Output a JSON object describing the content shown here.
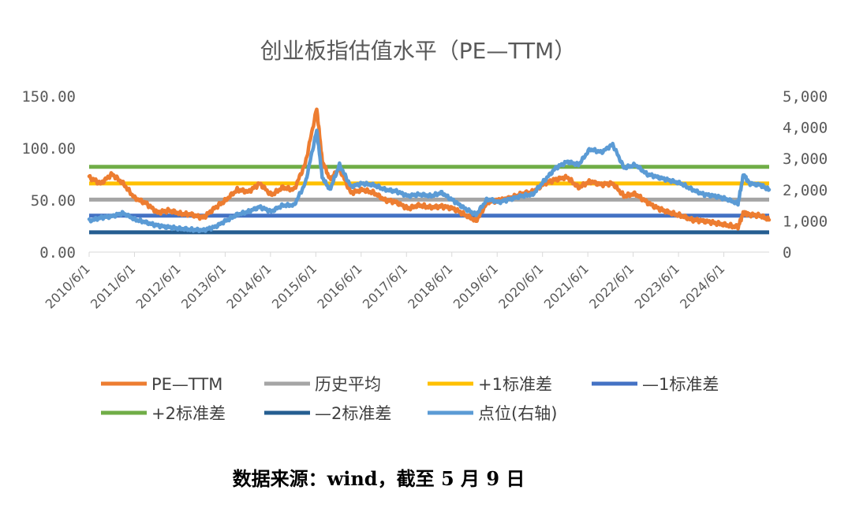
{
  "chart_data": {
    "type": "line",
    "title": "创业板指估值水平（PE—TTM）",
    "x_ticks": [
      "2010/6/1",
      "2011/6/1",
      "2012/6/1",
      "2013/6/1",
      "2014/6/1",
      "2015/6/1",
      "2016/6/1",
      "2017/6/1",
      "2018/6/1",
      "2019/6/1",
      "2020/6/1",
      "2021/6/1",
      "2022/6/1",
      "2023/6/1",
      "2024/6/1"
    ],
    "x_range": [
      "2010/6/1",
      "2025/5/9"
    ],
    "y_left": {
      "ticks": [
        "0.00",
        "50.00",
        "100.00",
        "150.00"
      ],
      "ylim": [
        0,
        150
      ]
    },
    "y_right": {
      "ticks": [
        "0",
        "1,000",
        "2,000",
        "3,000",
        "4,000",
        "5,000"
      ],
      "ylim": [
        0,
        5000
      ]
    },
    "grid": false,
    "legend_position": "bottom",
    "series": [
      {
        "name": "PE—TTM",
        "axis": "left",
        "color": "#ED7D31",
        "points": [
          [
            "2010/6/1",
            72
          ],
          [
            "2010/9/1",
            66
          ],
          [
            "2010/12/1",
            75
          ],
          [
            "2011/3/1",
            66
          ],
          [
            "2011/6/1",
            52
          ],
          [
            "2011/9/1",
            47
          ],
          [
            "2011/12/1",
            38
          ],
          [
            "2012/3/1",
            40
          ],
          [
            "2012/6/1",
            37
          ],
          [
            "2012/9/1",
            36
          ],
          [
            "2012/12/1",
            33
          ],
          [
            "2013/3/1",
            42
          ],
          [
            "2013/6/1",
            50
          ],
          [
            "2013/9/1",
            60
          ],
          [
            "2013/12/1",
            58
          ],
          [
            "2014/3/1",
            66
          ],
          [
            "2014/6/1",
            55
          ],
          [
            "2014/9/1",
            62
          ],
          [
            "2014/12/1",
            60
          ],
          [
            "2015/3/1",
            85
          ],
          [
            "2015/6/1",
            138
          ],
          [
            "2015/7/15",
            88
          ],
          [
            "2015/9/15",
            70
          ],
          [
            "2015/12/1",
            80
          ],
          [
            "2016/3/1",
            57
          ],
          [
            "2016/6/1",
            60
          ],
          [
            "2016/9/1",
            57
          ],
          [
            "2016/12/1",
            50
          ],
          [
            "2017/3/1",
            48
          ],
          [
            "2017/6/1",
            42
          ],
          [
            "2017/9/1",
            45
          ],
          [
            "2017/12/1",
            43
          ],
          [
            "2018/3/1",
            44
          ],
          [
            "2018/6/1",
            42
          ],
          [
            "2018/9/1",
            36
          ],
          [
            "2018/12/1",
            30
          ],
          [
            "2019/3/1",
            48
          ],
          [
            "2019/6/1",
            50
          ],
          [
            "2019/9/1",
            52
          ],
          [
            "2019/12/1",
            56
          ],
          [
            "2020/3/1",
            58
          ],
          [
            "2020/6/1",
            66
          ],
          [
            "2020/9/1",
            70
          ],
          [
            "2020/12/1",
            72
          ],
          [
            "2021/3/1",
            62
          ],
          [
            "2021/6/1",
            68
          ],
          [
            "2021/9/1",
            65
          ],
          [
            "2021/12/1",
            66
          ],
          [
            "2022/3/1",
            54
          ],
          [
            "2022/6/1",
            56
          ],
          [
            "2022/9/1",
            48
          ],
          [
            "2022/12/1",
            42
          ],
          [
            "2023/3/1",
            38
          ],
          [
            "2023/6/1",
            35
          ],
          [
            "2023/9/1",
            31
          ],
          [
            "2023/12/1",
            30
          ],
          [
            "2024/3/1",
            28
          ],
          [
            "2024/6/1",
            26
          ],
          [
            "2024/9/1",
            24
          ],
          [
            "2024/10/15",
            38
          ],
          [
            "2024/12/1",
            36
          ],
          [
            "2025/3/1",
            35
          ],
          [
            "2025/5/9",
            31
          ]
        ]
      },
      {
        "name": "历史平均",
        "axis": "left",
        "color": "#A5A5A5",
        "value": 50.5
      },
      {
        "name": "+1标准差",
        "axis": "left",
        "color": "#FFC000",
        "value": 66
      },
      {
        "name": "—1标准差",
        "axis": "left",
        "color": "#4472C4",
        "value": 35
      },
      {
        "name": "+2标准差",
        "axis": "left",
        "color": "#70AD47",
        "value": 82
      },
      {
        "name": "—2标准差",
        "axis": "left",
        "color": "#255E91",
        "value": 19
      },
      {
        "name": "点位(右轴)",
        "axis": "right",
        "color": "#5B9BD5",
        "points": [
          [
            "2010/6/1",
            1000
          ],
          [
            "2010/9/1",
            1100
          ],
          [
            "2010/12/1",
            1150
          ],
          [
            "2011/3/1",
            1250
          ],
          [
            "2011/6/1",
            1050
          ],
          [
            "2011/9/1",
            950
          ],
          [
            "2011/12/1",
            850
          ],
          [
            "2012/3/1",
            800
          ],
          [
            "2012/6/1",
            750
          ],
          [
            "2012/9/1",
            720
          ],
          [
            "2012/12/1",
            700
          ],
          [
            "2013/3/1",
            800
          ],
          [
            "2013/6/1",
            1000
          ],
          [
            "2013/9/1",
            1200
          ],
          [
            "2013/12/1",
            1300
          ],
          [
            "2014/3/1",
            1450
          ],
          [
            "2014/6/1",
            1300
          ],
          [
            "2014/9/1",
            1500
          ],
          [
            "2014/12/1",
            1500
          ],
          [
            "2015/3/1",
            2200
          ],
          [
            "2015/6/1",
            3900
          ],
          [
            "2015/7/15",
            2400
          ],
          [
            "2015/9/15",
            2000
          ],
          [
            "2015/12/1",
            2800
          ],
          [
            "2016/3/1",
            2100
          ],
          [
            "2016/6/1",
            2200
          ],
          [
            "2016/9/1",
            2150
          ],
          [
            "2016/12/1",
            2000
          ],
          [
            "2017/3/1",
            1950
          ],
          [
            "2017/6/1",
            1800
          ],
          [
            "2017/9/1",
            1850
          ],
          [
            "2017/12/1",
            1800
          ],
          [
            "2018/3/1",
            1900
          ],
          [
            "2018/6/1",
            1650
          ],
          [
            "2018/9/1",
            1400
          ],
          [
            "2018/12/1",
            1200
          ],
          [
            "2019/3/1",
            1700
          ],
          [
            "2019/6/1",
            1600
          ],
          [
            "2019/9/1",
            1700
          ],
          [
            "2019/12/1",
            1800
          ],
          [
            "2020/3/1",
            1850
          ],
          [
            "2020/6/1",
            2300
          ],
          [
            "2020/9/1",
            2700
          ],
          [
            "2020/12/1",
            2900
          ],
          [
            "2021/3/1",
            2800
          ],
          [
            "2021/6/1",
            3300
          ],
          [
            "2021/9/1",
            3200
          ],
          [
            "2021/12/1",
            3450
          ],
          [
            "2022/3/1",
            2700
          ],
          [
            "2022/6/1",
            2800
          ],
          [
            "2022/9/1",
            2500
          ],
          [
            "2022/12/1",
            2400
          ],
          [
            "2023/3/1",
            2300
          ],
          [
            "2023/6/1",
            2200
          ],
          [
            "2023/9/1",
            2000
          ],
          [
            "2023/12/1",
            1850
          ],
          [
            "2024/3/1",
            1800
          ],
          [
            "2024/6/1",
            1700
          ],
          [
            "2024/9/1",
            1550
          ],
          [
            "2024/10/15",
            2500
          ],
          [
            "2024/12/1",
            2200
          ],
          [
            "2025/3/1",
            2150
          ],
          [
            "2025/5/9",
            2000
          ]
        ]
      }
    ]
  },
  "legend": [
    {
      "label": "PE—TTM",
      "color": "#ED7D31"
    },
    {
      "label": "历史平均",
      "color": "#A5A5A5"
    },
    {
      "label": "+1标准差",
      "color": "#FFC000"
    },
    {
      "label": "—1标准差",
      "color": "#4472C4"
    },
    {
      "label": "+2标准差",
      "color": "#70AD47"
    },
    {
      "label": "—2标准差",
      "color": "#255E91"
    },
    {
      "label": "点位(右轴)",
      "color": "#5B9BD5"
    }
  ],
  "source_note": "数据来源：wind，截至 5 月 9 日"
}
